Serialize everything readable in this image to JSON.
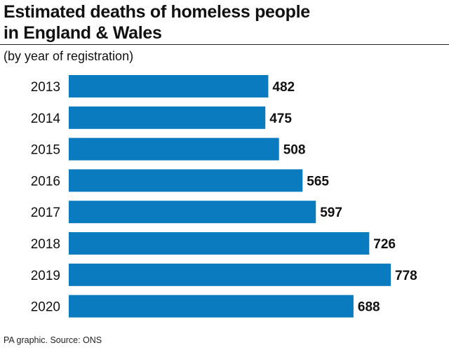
{
  "chart_data": {
    "type": "bar",
    "orientation": "horizontal",
    "title_lines": [
      "Estimated deaths of homeless people",
      "in England & Wales"
    ],
    "subtitle": "(by year of registration)",
    "categories": [
      "2013",
      "2014",
      "2015",
      "2016",
      "2017",
      "2018",
      "2019",
      "2020"
    ],
    "values": [
      482,
      475,
      508,
      565,
      597,
      726,
      778,
      688
    ],
    "value_labels": [
      "482",
      "475",
      "508",
      "565",
      "597",
      "726",
      "778",
      "688"
    ],
    "bar_color": "#0b7bc0",
    "xlim": [
      0,
      778
    ],
    "grid": false,
    "legend": "none"
  },
  "footer": {
    "source": "PA graphic. Source: ONS"
  }
}
